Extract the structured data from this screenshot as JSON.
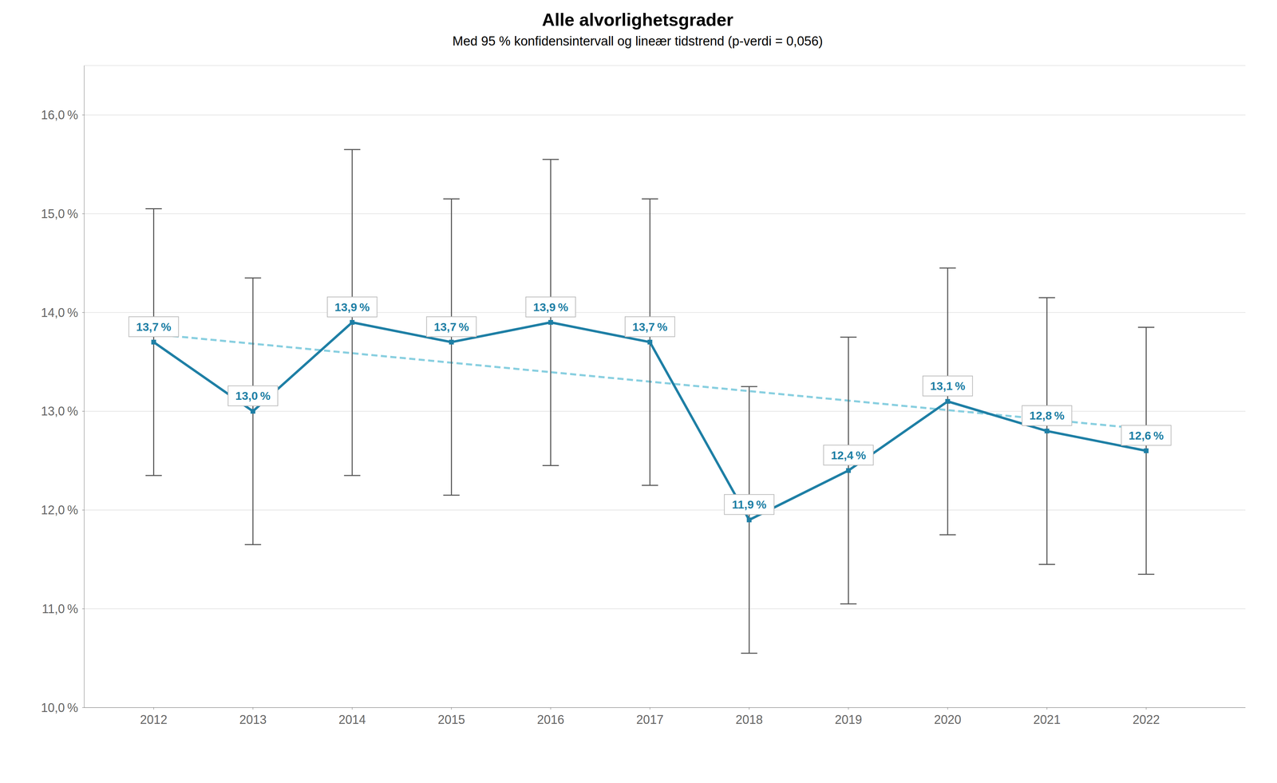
{
  "chart_data": {
    "type": "line",
    "title": "Alle alvorlighetsgrader",
    "subtitle": "Med 95 % konfidensintervall og lineær tidstrend (p-verdi = 0,056)",
    "x": [
      2012,
      2013,
      2014,
      2015,
      2016,
      2017,
      2018,
      2019,
      2020,
      2021,
      2022
    ],
    "values": [
      13.7,
      13.0,
      13.9,
      13.7,
      13.9,
      13.7,
      11.9,
      12.4,
      13.1,
      12.8,
      12.6
    ],
    "value_labels": [
      "13,7 %",
      "13,0 %",
      "13,9 %",
      "13,7 %",
      "13,9 %",
      "13,7 %",
      "11,9 %",
      "12,4 %",
      "13,1 %",
      "12,8 %",
      "12,6 %"
    ],
    "data_labels": true,
    "color": "#1e7fa5",
    "marker": "square",
    "line_style": "solid",
    "error_bars": {
      "lower": [
        12.35,
        11.65,
        12.35,
        12.15,
        12.45,
        12.25,
        10.55,
        11.05,
        11.75,
        11.45,
        11.35
      ],
      "upper": [
        15.05,
        14.35,
        15.65,
        15.15,
        15.55,
        15.15,
        13.25,
        13.75,
        14.45,
        14.15,
        13.85
      ],
      "color": "#555555"
    },
    "trend": {
      "x": [
        2012,
        2022
      ],
      "values": [
        13.78,
        12.82
      ],
      "color": "#88cfe0",
      "line_style": "dashed"
    },
    "grid": true,
    "xlim": [
      2011.3,
      2023.0
    ],
    "xticks": [
      2012,
      2013,
      2014,
      2015,
      2016,
      2017,
      2018,
      2019,
      2020,
      2021,
      2022
    ],
    "ylim": [
      10.0,
      16.5
    ],
    "yticks": [
      {
        "value": 10.0,
        "label": "10,0 %"
      },
      {
        "value": 11.0,
        "label": "11,0 %"
      },
      {
        "value": 12.0,
        "label": "12,0 %"
      },
      {
        "value": 13.0,
        "label": "13,0 %"
      },
      {
        "value": 14.0,
        "label": "14,0 %"
      },
      {
        "value": 15.0,
        "label": "15,0 %"
      },
      {
        "value": 16.0,
        "label": "16,0 %"
      }
    ]
  }
}
